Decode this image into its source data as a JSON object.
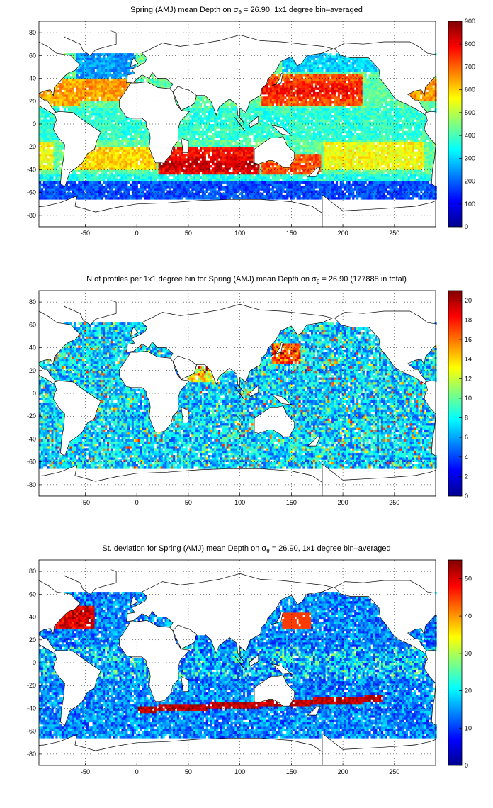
{
  "figure": {
    "panels": [
      {
        "title_pre": "Spring (AMJ) mean Depth on ",
        "title_mid": " = 26.90, 1x1 degree bin–averaged",
        "title_post": ""
      },
      {
        "title_pre": "N of profiles per 1x1 degree bin for Spring (AMJ) mean Depth on ",
        "title_mid": " = 26.90 (177888 in total)",
        "title_post": ""
      },
      {
        "title_pre": "St. deviation for Spring (AMJ) mean Depth on ",
        "title_mid": " = 26.90, 1x1 degree bin–averaged",
        "title_post": ""
      }
    ],
    "sigma_symbol": "σ",
    "theta_subscript": "θ"
  },
  "colors": {
    "jet": [
      "#00008f",
      "#0000ff",
      "#0080ff",
      "#00ffff",
      "#80ff80",
      "#ffff00",
      "#ff8000",
      "#ff0000",
      "#800000"
    ],
    "land": "#ffffff",
    "coast": "#000000",
    "grid": "#000000"
  },
  "chart_data": [
    {
      "type": "heatmap",
      "title": "Spring (AMJ) mean Depth on σθ = 26.90, 1x1 degree bin–averaged",
      "xlim": [
        -95,
        290
      ],
      "ylim": [
        -90,
        90
      ],
      "xticks": [
        -50,
        0,
        50,
        100,
        150,
        200,
        250
      ],
      "yticks": [
        -80,
        -60,
        -40,
        -20,
        0,
        20,
        40,
        60,
        80
      ],
      "grid": "dotted",
      "colorbar": {
        "min": 0,
        "max": 900,
        "ticks": [
          0,
          100,
          200,
          300,
          400,
          500,
          600,
          700,
          800,
          900
        ]
      },
      "field": "depth"
    },
    {
      "type": "heatmap",
      "title": "N of profiles per 1x1 degree bin for Spring (AMJ) mean Depth on σθ = 26.90 (177888 in total)",
      "xlim": [
        -95,
        290
      ],
      "ylim": [
        -90,
        90
      ],
      "xticks": [
        -50,
        0,
        50,
        100,
        150,
        200,
        250
      ],
      "yticks": [
        -80,
        -60,
        -40,
        -20,
        0,
        20,
        40,
        60,
        80
      ],
      "grid": "dotted",
      "colorbar": {
        "min": 0,
        "max": 21,
        "ticks": [
          0,
          2,
          4,
          6,
          8,
          10,
          12,
          14,
          16,
          18,
          20
        ]
      },
      "total_profiles": 177888,
      "field": "count"
    },
    {
      "type": "heatmap",
      "title": "St. deviation for Spring (AMJ) mean Depth on σθ = 26.90, 1x1 degree bin–averaged",
      "xlim": [
        -95,
        290
      ],
      "ylim": [
        -90,
        90
      ],
      "xticks": [
        -50,
        0,
        50,
        100,
        150,
        200,
        250
      ],
      "yticks": [
        -80,
        -60,
        -40,
        -20,
        0,
        20,
        40,
        60,
        80
      ],
      "grid": "dotted",
      "colorbar": {
        "min": 0,
        "max": 55,
        "ticks": [
          0,
          10,
          20,
          30,
          40,
          50
        ]
      },
      "field": "stddev"
    }
  ]
}
